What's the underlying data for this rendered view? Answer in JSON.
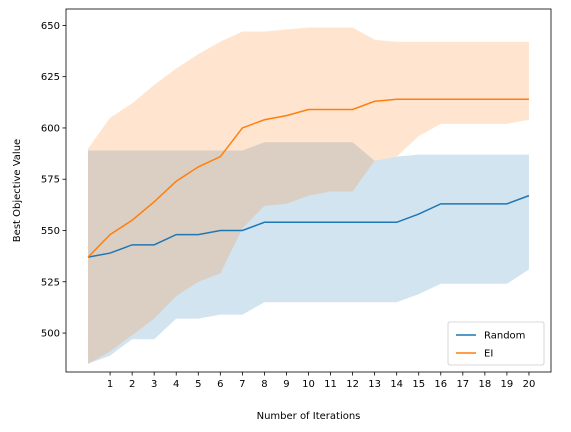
{
  "chart_data": {
    "type": "line",
    "xlabel": "Number of Iterations",
    "ylabel": "Best Objective Value",
    "x": [
      0,
      1,
      2,
      3,
      4,
      5,
      6,
      7,
      8,
      9,
      10,
      11,
      12,
      13,
      14,
      15,
      16,
      17,
      18,
      19,
      20
    ],
    "xticks": [
      "1",
      "2",
      "3",
      "4",
      "5",
      "6",
      "7",
      "8",
      "9",
      "10",
      "11",
      "12",
      "13",
      "14",
      "15",
      "16",
      "17",
      "18",
      "19",
      "20"
    ],
    "yticks": [
      500,
      525,
      550,
      575,
      600,
      625,
      650
    ],
    "ylim": [
      481,
      658
    ],
    "xlim": [
      -1,
      21
    ],
    "grid": false,
    "legend_position": "lower right",
    "series": [
      {
        "name": "Random",
        "color": "#1f77b4",
        "band_color": "#1f77b4",
        "values": [
          537,
          539,
          543,
          543,
          548,
          548,
          550,
          550,
          554,
          554,
          554,
          554,
          554,
          554,
          554,
          558,
          563,
          563,
          563,
          563,
          567
        ],
        "upper": [
          589,
          589,
          589,
          589,
          589,
          589,
          589,
          589,
          593,
          593,
          593,
          593,
          593,
          584,
          586,
          587,
          587,
          587,
          587,
          587,
          587
        ],
        "lower": [
          485,
          489,
          497,
          497,
          507,
          507,
          509,
          509,
          515,
          515,
          515,
          515,
          515,
          515,
          515,
          519,
          524,
          524,
          524,
          524,
          531
        ]
      },
      {
        "name": "EI",
        "color": "#ff7f0e",
        "band_color": "#ff7f0e",
        "values": [
          537,
          548,
          555,
          564,
          574,
          581,
          586,
          600,
          604,
          606,
          609,
          609,
          609,
          613,
          614,
          614,
          614,
          614,
          614,
          614,
          614
        ],
        "upper": [
          590,
          605,
          612,
          621,
          629,
          636,
          642,
          647,
          647,
          648,
          649,
          649,
          649,
          643,
          642,
          642,
          642,
          642,
          642,
          642,
          642
        ],
        "lower": [
          485,
          491,
          499,
          507,
          518,
          525,
          529,
          551,
          562,
          563,
          567,
          569,
          569,
          584,
          586,
          596,
          602,
          602,
          602,
          602,
          604
        ]
      }
    ]
  }
}
